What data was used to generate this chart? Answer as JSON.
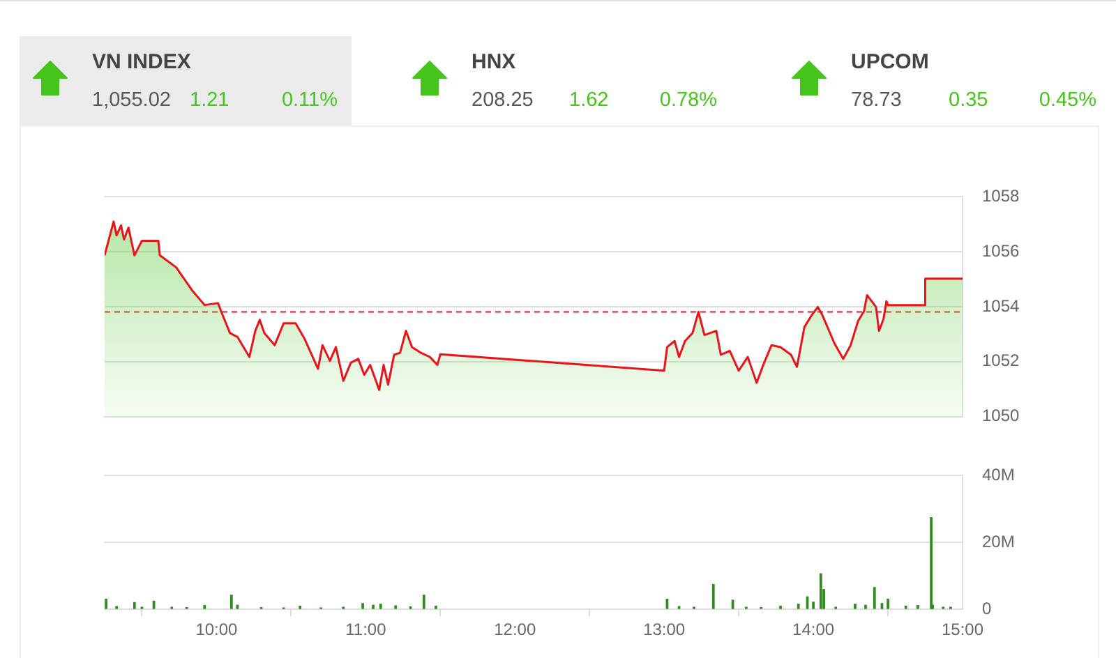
{
  "chart_data": [
    {
      "type": "other",
      "categories": [
        "VN INDEX",
        "HNX",
        "UPCOM"
      ],
      "annotations": [
        "1,055.02",
        "1.21",
        "0.11%",
        "208.25",
        "1.62",
        "0.78%",
        "78.73",
        "0.35",
        "0.45%"
      ]
    },
    {
      "type": "area",
      "xlim": [
        9.25,
        15
      ],
      "xticks": [
        {
          "value": 10,
          "label": null
        },
        {
          "value": 11,
          "label": null
        },
        {
          "value": 12,
          "label": null
        },
        {
          "value": 13,
          "label": null
        },
        {
          "value": 14,
          "label": null
        },
        {
          "value": 15,
          "label": null
        }
      ],
      "ylim": [
        1050,
        1058
      ],
      "yticks": [
        1050,
        1052,
        1054,
        1056,
        1058
      ],
      "grid": "y",
      "tick_labels": "y",
      "ref_lines": [
        {
          "axis": "y",
          "value": 1053.81,
          "color": "#e8141a",
          "line_style": "dashed"
        }
      ],
      "series": [
        {
          "color": "#e8141a",
          "x": [
            9.25,
            9.31,
            9.33,
            9.36,
            9.38,
            9.41,
            9.45,
            9.5,
            9.61,
            9.62,
            9.73,
            9.84,
            9.92,
            10.01,
            10.03,
            10.09,
            10.14,
            10.22,
            10.26,
            10.29,
            10.32,
            10.39,
            10.45,
            10.53,
            10.59,
            10.68,
            10.71,
            10.76,
            10.8,
            10.85,
            10.9,
            10.95,
            10.99,
            11.03,
            11.09,
            11.12,
            11.15,
            11.19,
            11.23,
            11.27,
            11.31,
            11.37,
            11.43,
            11.48,
            11.5,
            13.0,
            13.02,
            13.07,
            13.1,
            13.14,
            13.19,
            13.23,
            13.27,
            13.35,
            13.38,
            13.44,
            13.5,
            13.56,
            13.62,
            13.67,
            13.72,
            13.78,
            13.85,
            13.89,
            13.94,
            13.99,
            14.03,
            14.06,
            14.14,
            14.2,
            14.25,
            14.3,
            14.34,
            14.36,
            14.42,
            14.44,
            14.47,
            14.49,
            14.5,
            14.75,
            14.75,
            15
          ],
          "values": [
            1055.87,
            1057.1,
            1056.6,
            1056.96,
            1056.45,
            1056.88,
            1055.87,
            1056.4,
            1056.4,
            1055.87,
            1055.43,
            1054.57,
            1054.06,
            1054.13,
            1053.84,
            1053.04,
            1052.9,
            1052.17,
            1053.12,
            1053.52,
            1053.04,
            1052.6,
            1053.4,
            1053.4,
            1052.83,
            1051.74,
            1052.6,
            1052.03,
            1052.53,
            1051.3,
            1051.96,
            1052.1,
            1051.52,
            1051.88,
            1050.97,
            1051.88,
            1051.16,
            1052.25,
            1052.32,
            1053.12,
            1052.53,
            1052.32,
            1052.17,
            1051.88,
            1052.27,
            1051.67,
            1052.53,
            1052.75,
            1052.17,
            1052.75,
            1053.04,
            1053.81,
            1052.97,
            1053.12,
            1052.25,
            1052.39,
            1051.67,
            1052.17,
            1051.23,
            1051.96,
            1052.6,
            1052.53,
            1052.25,
            1051.81,
            1053.26,
            1053.7,
            1053.99,
            1053.7,
            1052.68,
            1052.1,
            1052.6,
            1053.48,
            1053.84,
            1054.42,
            1053.99,
            1053.12,
            1053.55,
            1054.2,
            1054.06,
            1054.06,
            1055.02,
            1055.02
          ]
        }
      ]
    },
    {
      "type": "bar",
      "xlim": [
        9.25,
        15
      ],
      "xticks": [
        {
          "value": 10,
          "label": "10:00"
        },
        {
          "value": 11,
          "label": "11:00"
        },
        {
          "value": 12,
          "label": "12:00"
        },
        {
          "value": 13,
          "label": "13:00"
        },
        {
          "value": 14,
          "label": "14:00"
        },
        {
          "value": 15,
          "label": "15:00"
        }
      ],
      "ylim": [
        0,
        40
      ],
      "yticks": [
        0,
        {
          "value": 20,
          "label": "20M"
        },
        {
          "value": 40,
          "label": "40M"
        }
      ],
      "grid": "y",
      "series": [
        {
          "color": "#2e8b1e",
          "x": [
            9.26,
            9.33,
            9.45,
            9.5,
            9.58,
            9.7,
            9.8,
            9.92,
            10.1,
            10.14,
            10.3,
            10.45,
            10.56,
            10.7,
            10.85,
            10.98,
            11.05,
            11.1,
            11.2,
            11.3,
            11.39,
            11.47,
            13.02,
            13.1,
            13.2,
            13.33,
            13.46,
            13.55,
            13.65,
            13.78,
            13.9,
            13.96,
            14.0,
            14.05,
            14.07,
            14.15,
            14.28,
            14.35,
            14.41,
            14.46,
            14.5,
            14.62,
            14.7,
            14.79,
            14.8,
            14.87,
            14.92
          ],
          "values": [
            3,
            0.8,
            2,
            0.6,
            2.4,
            0.6,
            0.5,
            1.1,
            4.2,
            1.2,
            0.5,
            0.4,
            0.9,
            0.4,
            0.6,
            1.7,
            1.2,
            1.5,
            1,
            0.7,
            4.2,
            0.9,
            3,
            0.8,
            0.6,
            7.4,
            2.7,
            0.6,
            0.5,
            0.9,
            1.5,
            3.7,
            2.1,
            10.6,
            5.9,
            0.6,
            1.5,
            1.2,
            6.5,
            1.7,
            3,
            0.9,
            1.1,
            27.4,
            1.2,
            0.6,
            0.6
          ]
        }
      ]
    }
  ]
}
